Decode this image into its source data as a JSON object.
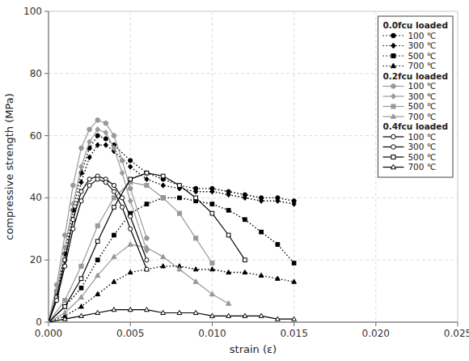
{
  "chart_data": {
    "type": "line",
    "xlabel": "strain (ε)",
    "ylabel": "compressive strength (MPa)",
    "xlim": [
      0.0,
      0.025
    ],
    "ylim": [
      0,
      100
    ],
    "xticks": [
      {
        "value": 0.0,
        "label": "0.000"
      },
      {
        "value": 0.005,
        "label": "0.005"
      },
      {
        "value": 0.01,
        "label": "0.010"
      },
      {
        "value": 0.015,
        "label": "0.015"
      },
      {
        "value": 0.02,
        "label": "0.020"
      },
      {
        "value": 0.025,
        "label": "0.025"
      }
    ],
    "yticks": [
      0,
      20,
      40,
      60,
      80,
      100
    ],
    "grid": true,
    "legend": "top-right",
    "series": [
      {
        "name": "100 ℃",
        "group": "0.0fcu loaded",
        "color": "#000000",
        "line_style": "dotted",
        "marker": "circle",
        "x": [
          0.0,
          0.0005,
          0.001,
          0.0015,
          0.002,
          0.0025,
          0.003,
          0.0035,
          0.004,
          0.005,
          0.006,
          0.007,
          0.008,
          0.009,
          0.01,
          0.011,
          0.012,
          0.013,
          0.014,
          0.015
        ],
        "values": [
          0,
          10,
          22,
          36,
          48,
          56,
          60,
          59,
          57,
          52,
          48,
          46,
          44,
          43,
          43,
          42,
          41,
          40,
          40,
          39
        ]
      },
      {
        "name": "300 ℃",
        "group": "0.0fcu loaded",
        "color": "#000000",
        "line_style": "dotted",
        "marker": "diamond",
        "x": [
          0.0,
          0.0005,
          0.001,
          0.0015,
          0.002,
          0.0025,
          0.003,
          0.0035,
          0.004,
          0.005,
          0.006,
          0.007,
          0.008,
          0.009,
          0.01,
          0.011,
          0.012,
          0.013,
          0.014,
          0.015
        ],
        "values": [
          0,
          9,
          20,
          33,
          45,
          53,
          57,
          57,
          55,
          50,
          46,
          44,
          43,
          42,
          42,
          41,
          40,
          39,
          39,
          38
        ]
      },
      {
        "name": "500 ℃",
        "group": "0.0fcu loaded",
        "color": "#000000",
        "line_style": "dotted",
        "marker": "square",
        "x": [
          0.0,
          0.001,
          0.002,
          0.003,
          0.004,
          0.005,
          0.006,
          0.007,
          0.008,
          0.009,
          0.01,
          0.011,
          0.012,
          0.013,
          0.014,
          0.015
        ],
        "values": [
          0,
          5,
          11,
          20,
          28,
          35,
          38,
          40,
          40,
          39,
          38,
          36,
          33,
          29,
          25,
          19
        ]
      },
      {
        "name": "700 ℃",
        "group": "0.0fcu loaded",
        "color": "#000000",
        "line_style": "dotted",
        "marker": "triangle",
        "x": [
          0.0,
          0.001,
          0.002,
          0.003,
          0.004,
          0.005,
          0.006,
          0.007,
          0.008,
          0.009,
          0.01,
          0.011,
          0.012,
          0.013,
          0.014,
          0.015
        ],
        "values": [
          0,
          2,
          5,
          9,
          13,
          16,
          17,
          18,
          18,
          17,
          17,
          16,
          16,
          15,
          14,
          13
        ]
      },
      {
        "name": "100 ℃",
        "group": "0.2fcu loaded",
        "color": "#999999",
        "line_style": "solid",
        "marker": "circle",
        "x": [
          0.0,
          0.0005,
          0.001,
          0.0015,
          0.002,
          0.0025,
          0.003,
          0.0035,
          0.004,
          0.0045,
          0.005,
          0.006
        ],
        "values": [
          0,
          12,
          28,
          44,
          56,
          62,
          65,
          64,
          60,
          52,
          43,
          27
        ]
      },
      {
        "name": "300 ℃",
        "group": "0.2fcu loaded",
        "color": "#999999",
        "line_style": "solid",
        "marker": "diamond",
        "x": [
          0.0,
          0.0005,
          0.001,
          0.0015,
          0.002,
          0.0025,
          0.003,
          0.0035,
          0.004,
          0.0045,
          0.005,
          0.006
        ],
        "values": [
          0,
          10,
          24,
          38,
          50,
          58,
          62,
          61,
          56,
          48,
          39,
          23
        ]
      },
      {
        "name": "500 ℃",
        "group": "0.2fcu loaded",
        "color": "#999999",
        "line_style": "solid",
        "marker": "square",
        "x": [
          0.0,
          0.001,
          0.002,
          0.003,
          0.004,
          0.005,
          0.006,
          0.007,
          0.008,
          0.009,
          0.01
        ],
        "values": [
          0,
          7,
          18,
          31,
          40,
          45,
          44,
          40,
          35,
          27,
          19
        ]
      },
      {
        "name": "700 ℃",
        "group": "0.2fcu loaded",
        "color": "#999999",
        "line_style": "solid",
        "marker": "triangle",
        "x": [
          0.0,
          0.001,
          0.002,
          0.003,
          0.004,
          0.005,
          0.006,
          0.007,
          0.008,
          0.009,
          0.01,
          0.011
        ],
        "values": [
          0,
          3,
          8,
          15,
          21,
          25,
          24,
          21,
          17,
          13,
          9,
          6
        ]
      },
      {
        "name": "100 ℃",
        "group": "0.4fcu loaded",
        "color": "#000000",
        "line_style": "solid",
        "marker": "open-circle",
        "x": [
          0.0,
          0.0005,
          0.001,
          0.0015,
          0.002,
          0.0025,
          0.003,
          0.0035,
          0.004,
          0.0045,
          0.005,
          0.006
        ],
        "values": [
          0,
          8,
          20,
          33,
          42,
          46,
          47,
          46,
          44,
          40,
          34,
          20
        ]
      },
      {
        "name": "300 ℃",
        "group": "0.4fcu loaded",
        "color": "#000000",
        "line_style": "solid",
        "marker": "open-circle",
        "x": [
          0.0,
          0.0005,
          0.001,
          0.0015,
          0.002,
          0.0025,
          0.003,
          0.0035,
          0.004,
          0.0045,
          0.005,
          0.006
        ],
        "values": [
          0,
          7,
          18,
          30,
          39,
          44,
          46,
          45,
          42,
          37,
          30,
          17
        ]
      },
      {
        "name": "500 ℃",
        "group": "0.4fcu loaded",
        "color": "#000000",
        "line_style": "solid",
        "marker": "open-square",
        "x": [
          0.0,
          0.001,
          0.002,
          0.003,
          0.004,
          0.005,
          0.006,
          0.007,
          0.008,
          0.009,
          0.01,
          0.011,
          0.012
        ],
        "values": [
          0,
          5,
          14,
          26,
          37,
          46,
          48,
          47,
          44,
          40,
          35,
          28,
          20
        ]
      },
      {
        "name": "700 ℃",
        "group": "0.4fcu loaded",
        "color": "#000000",
        "line_style": "solid",
        "marker": "open-triangle",
        "x": [
          0.0,
          0.001,
          0.002,
          0.003,
          0.004,
          0.005,
          0.006,
          0.007,
          0.008,
          0.009,
          0.01,
          0.011,
          0.012,
          0.013,
          0.014,
          0.015
        ],
        "values": [
          0,
          1,
          2,
          3,
          4,
          4,
          4,
          3,
          3,
          3,
          2,
          2,
          2,
          2,
          1,
          1
        ]
      }
    ]
  }
}
